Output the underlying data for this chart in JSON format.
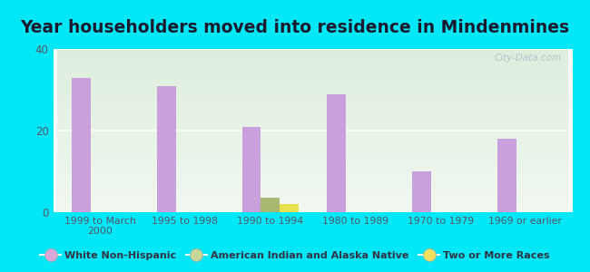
{
  "title": "Year householders moved into residence in Mindenmines",
  "categories": [
    "1999 to March\n2000",
    "1995 to 1998",
    "1990 to 1994",
    "1980 to 1989",
    "1970 to 1979",
    "1969 or earlier"
  ],
  "series": {
    "White Non-Hispanic": [
      33,
      31,
      21,
      29,
      10,
      18
    ],
    "American Indian and Alaska Native": [
      0,
      0,
      3.5,
      0,
      0,
      0
    ],
    "Two or More Races": [
      0,
      0,
      2,
      0,
      0,
      0
    ]
  },
  "bar_colors": {
    "White Non-Hispanic": "#c9a0dc",
    "American Indian and Alaska Native": "#a8b870",
    "Two or More Races": "#e8e050"
  },
  "legend_colors": {
    "White Non-Hispanic": "#d8a8d8",
    "American Indian and Alaska Native": "#c8d898",
    "Two or More Races": "#f0e060"
  },
  "ylim": [
    0,
    40
  ],
  "yticks": [
    0,
    20,
    40
  ],
  "background_color": "#00e8f8",
  "bar_width": 0.22,
  "title_fontsize": 13.5,
  "title_color": "#1a1a2e",
  "tick_color": "#555566"
}
